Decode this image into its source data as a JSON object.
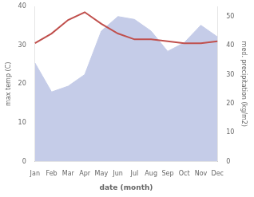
{
  "chart_data": {
    "type": "line",
    "categories": [
      "Jan",
      "Feb",
      "Mar",
      "Apr",
      "May",
      "Jun",
      "Jul",
      "Aug",
      "Sep",
      "Oct",
      "Nov",
      "Dec"
    ],
    "series": [
      {
        "type": "line",
        "color": "#c0504d",
        "values": [
          30.5,
          33.0,
          36.5,
          38.5,
          35.5,
          33.0,
          31.5,
          31.5,
          31.0,
          30.5,
          30.5,
          31.0
        ]
      },
      {
        "type": "area",
        "axis": "y2",
        "color": "#c5cce8",
        "values": [
          34,
          24,
          26,
          30,
          45,
          50,
          49,
          45,
          38,
          41,
          47,
          43
        ]
      }
    ],
    "xlabel": "date (month)",
    "ylabel": "max temp (C)",
    "y2label": "med. precipitation (kg/m2)",
    "ylim": [
      0,
      40
    ],
    "yticks": [
      0,
      10,
      20,
      30,
      40
    ],
    "y2lim": [
      0,
      53.5
    ],
    "y2ticks": [
      0,
      10,
      20,
      30,
      40,
      50
    ],
    "grid": false
  }
}
